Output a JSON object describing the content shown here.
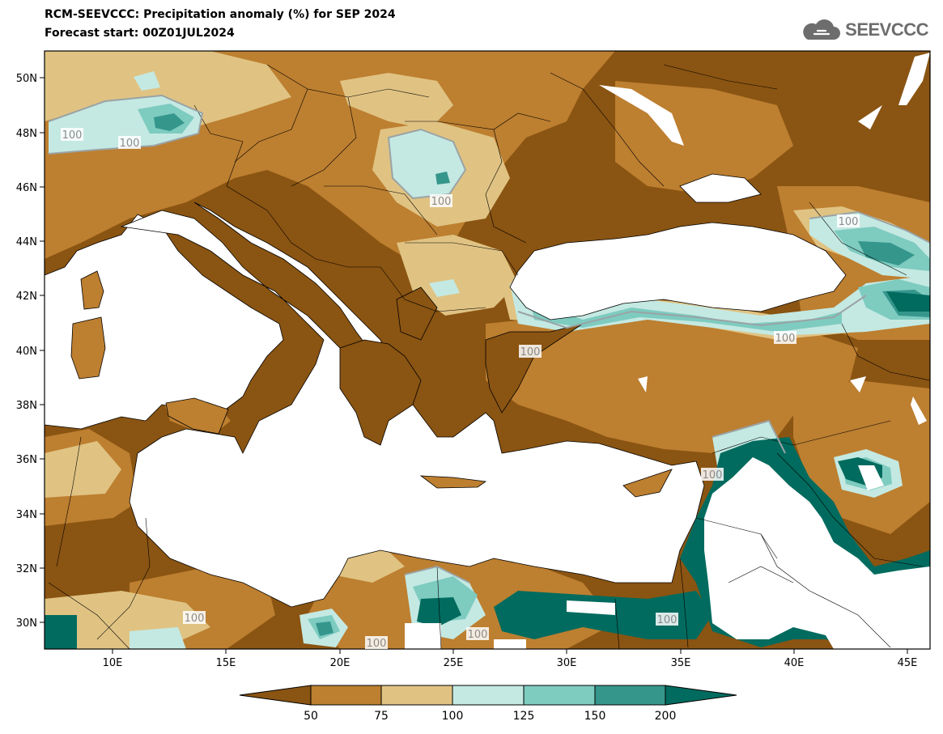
{
  "header": {
    "title": "RCM-SEEVCCC: Precipitation anomaly (%) for SEP 2024",
    "subtitle": "Forecast start: 00Z01JUL2024"
  },
  "logo": {
    "text": "SEEVCCC",
    "icon": "cloud-icon"
  },
  "map": {
    "lon_ticks": [
      "10E",
      "15E",
      "20E",
      "25E",
      "30E",
      "35E",
      "40E",
      "45E"
    ],
    "lat_ticks": [
      "50N",
      "48N",
      "46N",
      "44N",
      "42N",
      "40N",
      "38N",
      "36N",
      "34N",
      "32N",
      "30N"
    ],
    "contour_label": "100"
  },
  "colorbar": {
    "labels": [
      "50",
      "75",
      "100",
      "125",
      "150",
      "200"
    ],
    "colors": [
      "#8a5412",
      "#bd7f30",
      "#e0c383",
      "#c4e9e2",
      "#7ecbc0",
      "#35968c",
      "#006b5e"
    ]
  },
  "colors": {
    "land_low": "#8a5412",
    "land_mid": "#bd7f30",
    "land_norm": "#e0c383",
    "wet1": "#c4e9e2",
    "wet2": "#7ecbc0",
    "wet3": "#35968c",
    "wet4": "#006b5e",
    "sea": "#ffffff"
  }
}
